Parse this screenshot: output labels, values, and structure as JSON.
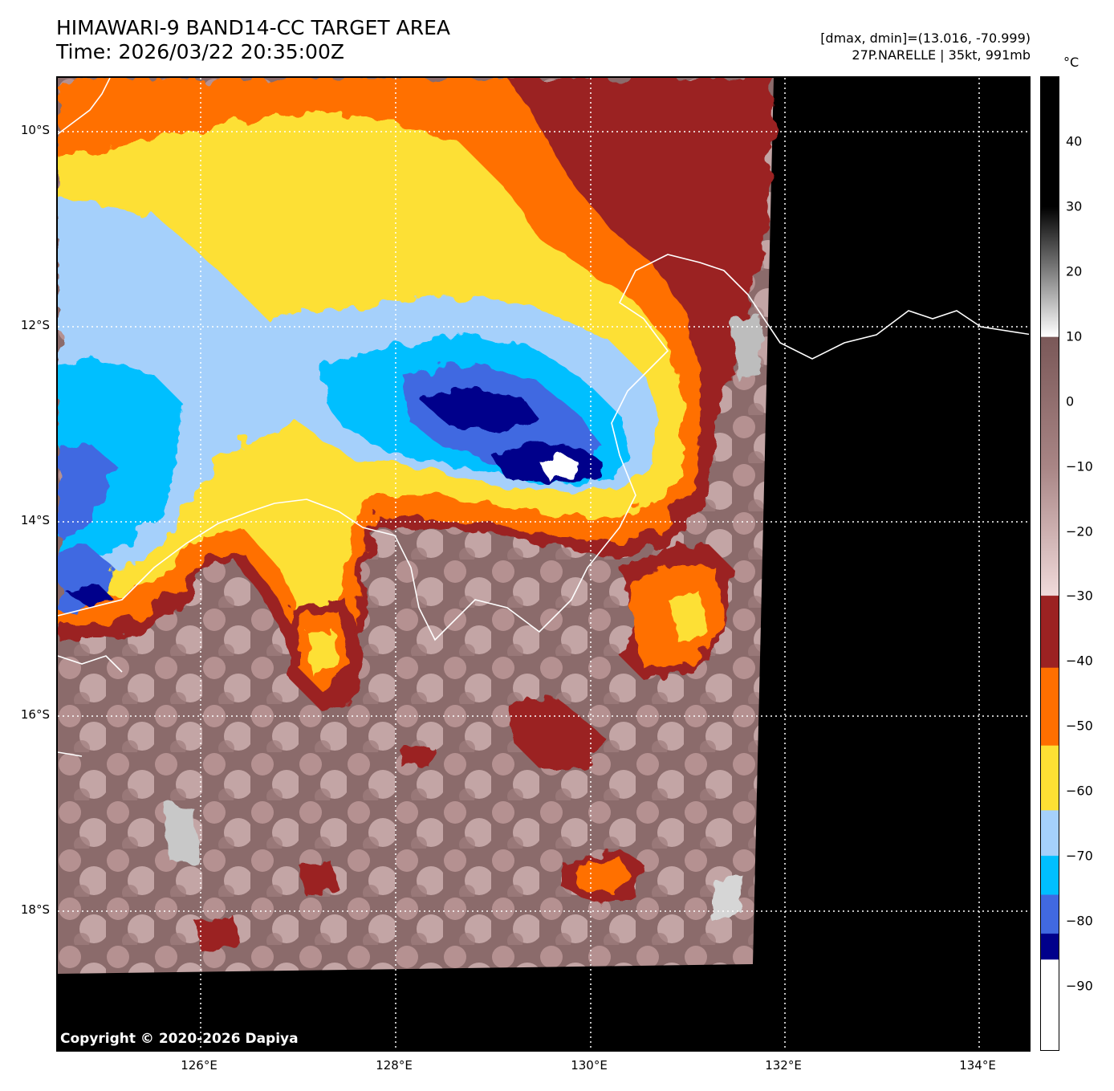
{
  "header": {
    "title_line1": "HIMAWARI-9 BAND14-CC TARGET AREA",
    "title_line2": "Time: 2026/03/22 20:35:00Z",
    "dminmax": "[dmax, dmin]=(13.016, -70.999)",
    "storm": "27P.NARELLE | 35kt, 991mb"
  },
  "map": {
    "lat_labels": [
      "10°S",
      "12°S",
      "14°S",
      "16°S",
      "18°S"
    ],
    "lon_labels": [
      "126°E",
      "128°E",
      "130°E",
      "132°E",
      "134°E"
    ],
    "copyright": "Copyright © 2020-2026 Dapiya",
    "colors": {
      "cold_white": "#ffffff",
      "navy": "#00008b",
      "royal_blue": "#4169e1",
      "deep_sky": "#00bfff",
      "light_sky": "#a5d0fb",
      "gold": "#fde034",
      "orange": "#ff6f00",
      "dark_red": "#9b2222",
      "warm_gray": "#8b6b6b",
      "pink": "#e8c8c8",
      "land_black": "#000000"
    }
  },
  "colorbar": {
    "unit": "°C",
    "ticks": [
      "40",
      "30",
      "20",
      "10",
      "0",
      "−10",
      "−20",
      "−30",
      "−40",
      "−50",
      "−60",
      "−70",
      "−80",
      "−90"
    ],
    "tick_values": [
      40,
      30,
      20,
      10,
      0,
      -10,
      -20,
      -30,
      -40,
      -50,
      -60,
      -70,
      -80,
      -90
    ],
    "range": [
      -100,
      50
    ]
  }
}
